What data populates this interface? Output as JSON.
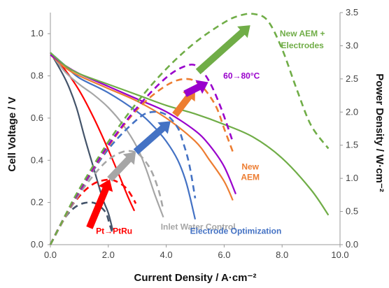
{
  "chart_data": {
    "type": "line",
    "xlabel": "Current Density / A·cm⁻²",
    "ylabel_left": "Cell Voltage / V",
    "ylabel_right": "Power Density / W·cm⁻²",
    "xlim": [
      0,
      10
    ],
    "ylim_left": [
      0,
      1.1
    ],
    "ylim_right": [
      0,
      3.5
    ],
    "x_ticks": [
      "0.0",
      "2.0",
      "4.0",
      "6.0",
      "8.0",
      "10.0"
    ],
    "y_left_ticks": [
      "0.0",
      "0.2",
      "0.4",
      "0.6",
      "0.8",
      "1.0"
    ],
    "y_right_ticks": [
      "0.0",
      "0.5",
      "1.0",
      "1.5",
      "2.0",
      "2.5",
      "3.0",
      "3.5"
    ],
    "grid": false,
    "series": [
      {
        "color": "#44546a",
        "voltage": {
          "x": [
            0,
            0.3,
            0.6,
            0.9,
            1.2,
            1.5,
            1.8,
            2.0,
            2.15
          ],
          "y": [
            0.91,
            0.84,
            0.76,
            0.65,
            0.5,
            0.36,
            0.22,
            0.15,
            0.07
          ]
        },
        "power": {
          "x": [
            0,
            0.3,
            0.6,
            0.9,
            1.2,
            1.5,
            1.7,
            1.85,
            1.95,
            2.05,
            2.15
          ],
          "y": [
            0,
            0.26,
            0.46,
            0.58,
            0.63,
            0.63,
            0.58,
            0.52,
            0.45,
            0.3,
            0.17
          ]
        }
      },
      {
        "color": "#ff0000",
        "voltage": {
          "x": [
            0,
            0.5,
            1.0,
            1.5,
            2.0,
            2.4,
            2.7,
            2.9
          ],
          "y": [
            0.91,
            0.83,
            0.73,
            0.6,
            0.45,
            0.32,
            0.22,
            0.16
          ]
        },
        "power": {
          "x": [
            0,
            0.5,
            1.0,
            1.5,
            2.0,
            2.3,
            2.6,
            2.8,
            2.95
          ],
          "y": [
            0,
            0.42,
            0.73,
            0.92,
            0.98,
            0.95,
            0.86,
            0.74,
            0.62
          ]
        }
      },
      {
        "color": "#a6a6a6",
        "voltage": {
          "x": [
            0,
            0.5,
            1.0,
            1.5,
            2.0,
            2.5,
            3.0,
            3.3,
            3.6,
            3.9
          ],
          "y": [
            0.91,
            0.82,
            0.76,
            0.71,
            0.65,
            0.57,
            0.46,
            0.36,
            0.24,
            0.13
          ]
        },
        "power": {
          "x": [
            0,
            0.5,
            1.0,
            1.5,
            2.0,
            2.5,
            2.9,
            3.2,
            3.5,
            3.75,
            3.9
          ],
          "y": [
            0,
            0.4,
            0.76,
            1.05,
            1.28,
            1.4,
            1.4,
            1.3,
            1.1,
            0.8,
            0.52
          ]
        }
      },
      {
        "color": "#4472c4",
        "voltage": {
          "x": [
            0,
            0.5,
            1.0,
            2.0,
            3.0,
            3.5,
            4.0,
            4.4,
            4.7,
            5.0
          ],
          "y": [
            0.91,
            0.85,
            0.79,
            0.72,
            0.63,
            0.57,
            0.49,
            0.4,
            0.29,
            0.12
          ]
        },
        "power": {
          "x": [
            0,
            0.5,
            1.0,
            2.0,
            3.0,
            3.5,
            4.0,
            4.4,
            4.6,
            4.8,
            5.0
          ],
          "y": [
            0,
            0.42,
            0.79,
            1.44,
            1.89,
            2.0,
            1.96,
            1.76,
            1.52,
            1.2,
            0.7
          ]
        }
      },
      {
        "color": "#ed7d31",
        "voltage": {
          "x": [
            0,
            0.5,
            1.0,
            2.0,
            3.0,
            4.0,
            5.0,
            5.5,
            6.0,
            6.3
          ],
          "y": [
            0.9,
            0.84,
            0.8,
            0.74,
            0.68,
            0.6,
            0.49,
            0.4,
            0.3,
            0.21
          ]
        },
        "power": {
          "x": [
            0,
            0.5,
            1.0,
            2.0,
            3.0,
            4.0,
            4.7,
            5.2,
            5.7,
            6.0,
            6.3
          ],
          "y": [
            0,
            0.42,
            0.8,
            1.48,
            2.04,
            2.4,
            2.5,
            2.4,
            2.1,
            1.75,
            1.4
          ]
        }
      },
      {
        "color": "#9900cc",
        "voltage": {
          "x": [
            0,
            0.5,
            1.0,
            2.0,
            3.0,
            4.0,
            5.0,
            5.5,
            6.0,
            6.4
          ],
          "y": [
            0.9,
            0.85,
            0.81,
            0.75,
            0.69,
            0.63,
            0.54,
            0.47,
            0.37,
            0.24
          ]
        },
        "power": {
          "x": [
            0,
            0.5,
            1.0,
            2.0,
            3.0,
            4.0,
            4.7,
            5.1,
            5.5,
            5.9,
            6.3
          ],
          "y": [
            0,
            0.43,
            0.81,
            1.5,
            2.07,
            2.52,
            2.7,
            2.68,
            2.45,
            2.05,
            1.55
          ]
        }
      },
      {
        "color": "#70ad47",
        "voltage": {
          "x": [
            0,
            0.5,
            1.0,
            2.0,
            3.0,
            4.0,
            5.0,
            6.0,
            7.0,
            8.0,
            9.0,
            9.6
          ],
          "y": [
            0.91,
            0.85,
            0.81,
            0.76,
            0.71,
            0.66,
            0.62,
            0.57,
            0.51,
            0.41,
            0.26,
            0.14
          ]
        },
        "power": {
          "x": [
            0,
            0.5,
            1.0,
            2.0,
            3.0,
            4.0,
            5.0,
            6.0,
            6.5,
            7.0,
            7.5,
            8.0,
            8.5,
            9.0,
            9.6
          ],
          "y": [
            0,
            0.43,
            0.84,
            1.55,
            2.15,
            2.65,
            3.05,
            3.35,
            3.45,
            3.48,
            3.38,
            2.95,
            2.35,
            1.8,
            1.45
          ]
        }
      }
    ],
    "arrows": [
      {
        "color": "#ff0000",
        "from": [
          1.35,
          0.08
        ],
        "to": [
          2.05,
          0.31
        ]
      },
      {
        "color": "#a6a6a6",
        "from": [
          2.05,
          0.31
        ],
        "to": [
          2.95,
          0.44
        ]
      },
      {
        "color": "#4472c4",
        "from": [
          2.95,
          0.44
        ],
        "to": [
          4.15,
          0.585
        ]
      },
      {
        "color": "#ed7d31",
        "from": [
          4.3,
          0.615
        ],
        "to": [
          5.0,
          0.74
        ]
      },
      {
        "color": "#9900cc",
        "from": [
          4.65,
          0.715
        ],
        "to": [
          5.45,
          0.77
        ]
      },
      {
        "color": "#70ad47",
        "from": [
          5.1,
          0.82
        ],
        "to": [
          6.9,
          1.04
        ]
      }
    ],
    "annotations": [
      {
        "text": "Pt→PtRu",
        "color": "#ff0000",
        "x": 2.2,
        "y": 0.065
      },
      {
        "text": "Inlet Water Control",
        "color": "#a6a6a6",
        "x": 5.1,
        "y": 0.085
      },
      {
        "text": "Electrode Optimization",
        "color": "#4472c4",
        "x": 6.4,
        "y": 0.065
      },
      {
        "text": "New",
        "color": "#ed7d31",
        "x": 6.9,
        "y": 0.37
      },
      {
        "text": "AEM",
        "color": "#ed7d31",
        "x": 6.9,
        "y": 0.32
      },
      {
        "text": "60→80°C",
        "color": "#9900cc",
        "x": 6.6,
        "y": 0.8
      },
      {
        "text": "New AEM +",
        "color": "#70ad47",
        "x": 8.7,
        "y": 1.0
      },
      {
        "text": "Electrodes",
        "color": "#70ad47",
        "x": 8.7,
        "y": 0.945
      }
    ]
  }
}
